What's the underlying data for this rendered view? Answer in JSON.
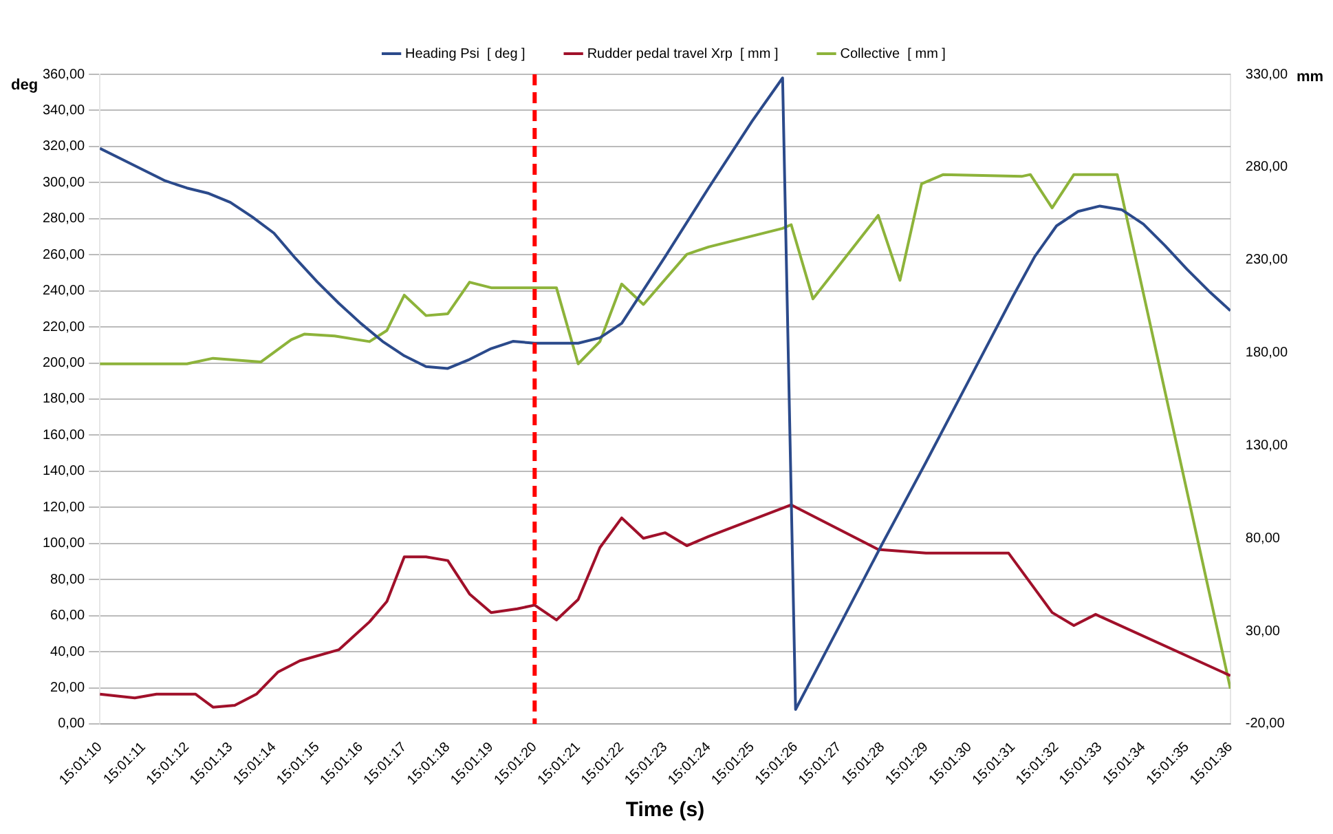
{
  "chart_data": {
    "type": "line",
    "xlabel": "Time (s)",
    "ylabel": "deg",
    "y2label": "mm",
    "legend": "top",
    "grid": "y",
    "marker": "none",
    "line_style": "solid",
    "xlim": [
      15.019444,
      15.026667
    ],
    "xticks": [
      {
        "value": 15.019444,
        "label": "15:01:10"
      },
      {
        "value": 15.019722,
        "label": "15:01:11"
      },
      {
        "value": 15.02,
        "label": "15:01:12"
      },
      {
        "value": 15.020278,
        "label": "15:01:13"
      },
      {
        "value": 15.020556,
        "label": "15:01:14"
      },
      {
        "value": 15.020833,
        "label": "15:01:15"
      },
      {
        "value": 15.021111,
        "label": "15:01:16"
      },
      {
        "value": 15.021389,
        "label": "15:01:17"
      },
      {
        "value": 15.021667,
        "label": "15:01:18"
      },
      {
        "value": 15.021944,
        "label": "15:01:19"
      },
      {
        "value": 15.022222,
        "label": "15:01:20"
      },
      {
        "value": 15.0225,
        "label": "15:01:21"
      },
      {
        "value": 15.022778,
        "label": "15:01:22"
      },
      {
        "value": 15.023056,
        "label": "15:01:23"
      },
      {
        "value": 15.023333,
        "label": "15:01:24"
      },
      {
        "value": 15.023611,
        "label": "15:01:25"
      },
      {
        "value": 15.023889,
        "label": "15:01:26"
      },
      {
        "value": 15.024167,
        "label": "15:01:27"
      },
      {
        "value": 15.024444,
        "label": "15:01:28"
      },
      {
        "value": 15.024722,
        "label": "15:01:29"
      },
      {
        "value": 15.025,
        "label": "15:01:30"
      },
      {
        "value": 15.025278,
        "label": "15:01:31"
      },
      {
        "value": 15.025556,
        "label": "15:01:32"
      },
      {
        "value": 15.025833,
        "label": "15:01:33"
      },
      {
        "value": 15.026111,
        "label": "15:01:34"
      },
      {
        "value": 15.026389,
        "label": "15:01:35"
      },
      {
        "value": 15.026667,
        "label": "15:01:36"
      }
    ],
    "ylim": [
      0,
      360
    ],
    "yticks": [
      {
        "value": 0,
        "label": "0,00"
      },
      {
        "value": 20,
        "label": "20,00"
      },
      {
        "value": 40,
        "label": "40,00"
      },
      {
        "value": 60,
        "label": "60,00"
      },
      {
        "value": 80,
        "label": "80,00"
      },
      {
        "value": 100,
        "label": "100,00"
      },
      {
        "value": 120,
        "label": "120,00"
      },
      {
        "value": 140,
        "label": "140,00"
      },
      {
        "value": 160,
        "label": "160,00"
      },
      {
        "value": 180,
        "label": "180,00"
      },
      {
        "value": 200,
        "label": "200,00"
      },
      {
        "value": 220,
        "label": "220,00"
      },
      {
        "value": 240,
        "label": "240,00"
      },
      {
        "value": 260,
        "label": "260,00"
      },
      {
        "value": 280,
        "label": "280,00"
      },
      {
        "value": 300,
        "label": "300,00"
      },
      {
        "value": 320,
        "label": "320,00"
      },
      {
        "value": 340,
        "label": "340,00"
      },
      {
        "value": 360,
        "label": "360,00"
      }
    ],
    "y2lim": [
      -20,
      330
    ],
    "y2ticks": [
      {
        "value": -20,
        "label": "-20,00"
      },
      {
        "value": 30,
        "label": "30,00"
      },
      {
        "value": 80,
        "label": "80,00"
      },
      {
        "value": 130,
        "label": "130,00"
      },
      {
        "value": 180,
        "label": "180,00"
      },
      {
        "value": 230,
        "label": "230,00"
      },
      {
        "value": 280,
        "label": "280,00"
      },
      {
        "value": 330,
        "label": "330,00"
      }
    ],
    "ref_lines": [
      {
        "axis": "x",
        "value": 15.022222,
        "color": "#ff0000",
        "line_style": "dashed"
      }
    ],
    "series": [
      {
        "name": "Heading Psi  [ deg ]",
        "color": "#2b4a8b",
        "x": [
          15.019444,
          15.019583,
          15.019722,
          15.019861,
          15.02,
          15.020139,
          15.020278,
          15.020417,
          15.020556,
          15.020694,
          15.020833,
          15.020972,
          15.021111,
          15.02125,
          15.021389,
          15.021528,
          15.021667,
          15.021806,
          15.021944,
          15.022083,
          15.022222,
          15.0225,
          15.022639,
          15.022778,
          15.023056,
          15.023333,
          15.023611,
          15.023806,
          15.023889,
          15.024167,
          15.024444,
          15.024722,
          15.025,
          15.025278,
          15.025417,
          15.025556,
          15.025694,
          15.025833,
          15.025972,
          15.026111,
          15.02625,
          15.026389,
          15.026528,
          15.026667
        ],
        "values": [
          319,
          313,
          307,
          301,
          297,
          294,
          289,
          281,
          272,
          258,
          245,
          233,
          222,
          212,
          204,
          198,
          197,
          202,
          208,
          212,
          211,
          211,
          214,
          222,
          259,
          297,
          334,
          358,
          8,
          54,
          100,
          145,
          191,
          237,
          259,
          276,
          284,
          287,
          285,
          277,
          265,
          252,
          240,
          229
        ]
      },
      {
        "name": "Rudder pedal travel Xrp  [ mm ]",
        "color": "#a0102a",
        "axis": "y2",
        "x": [
          15.019444,
          15.019667,
          15.019806,
          15.020056,
          15.020167,
          15.020306,
          15.020444,
          15.020583,
          15.020722,
          15.020972,
          15.021167,
          15.021278,
          15.021389,
          15.021528,
          15.021667,
          15.021806,
          15.021944,
          15.022111,
          15.022222,
          15.022361,
          15.0225,
          15.022639,
          15.022778,
          15.022917,
          15.023056,
          15.023194,
          15.023333,
          15.023861,
          15.024417,
          15.024722,
          15.02525,
          15.025528,
          15.025667,
          15.025806,
          15.026667
        ],
        "values": [
          -4,
          -6,
          -4,
          -4,
          -11,
          -10,
          -4,
          8,
          14,
          20,
          35,
          46,
          70,
          70,
          68,
          50,
          40,
          42,
          44,
          36,
          47,
          75,
          91,
          80,
          83,
          76,
          81,
          98,
          74,
          72,
          72,
          40,
          33,
          39,
          6
        ]
      },
      {
        "name": "Collective  [ mm ]",
        "color": "#8db33a",
        "axis": "y2",
        "x": [
          15.019444,
          15.02,
          15.020167,
          15.020472,
          15.020667,
          15.02075,
          15.020944,
          15.021167,
          15.021278,
          15.021389,
          15.021528,
          15.021667,
          15.021806,
          15.021944,
          15.022361,
          15.0225,
          15.022639,
          15.022778,
          15.022917,
          15.023194,
          15.023333,
          15.023806,
          15.023861,
          15.024,
          15.024417,
          15.024556,
          15.024694,
          15.024833,
          15.025333,
          15.025389,
          15.025528,
          15.025667,
          15.025944,
          15.026667
        ],
        "values": [
          174,
          174,
          177,
          175,
          187,
          190,
          189,
          186,
          192,
          211,
          200,
          201,
          218,
          215,
          215,
          174,
          186,
          217,
          206,
          233,
          237,
          247,
          249,
          209,
          254,
          219,
          271,
          276,
          275,
          276,
          258,
          276,
          276,
          -1
        ]
      }
    ]
  }
}
